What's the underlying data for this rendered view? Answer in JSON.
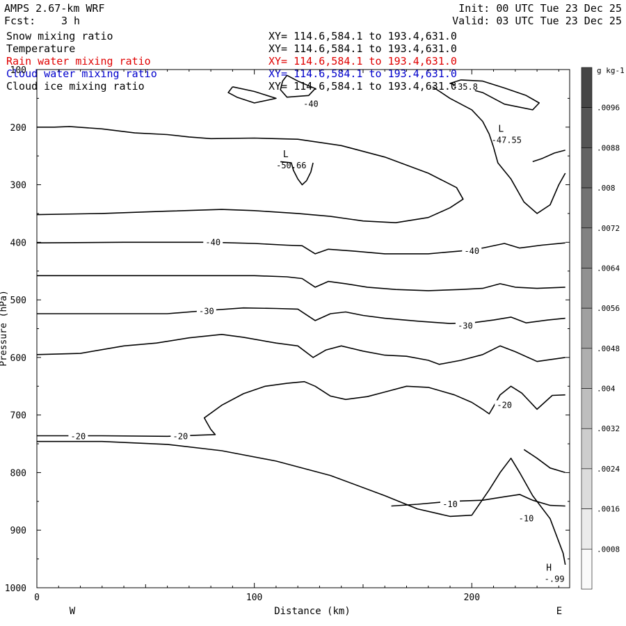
{
  "header": {
    "model": "AMPS 2.67-km WRF",
    "forecast_label": "Fcst:",
    "forecast_value": "3 h",
    "init": "Init: 00 UTC Tue 23 Dec 25",
    "valid": "Valid: 03 UTC Tue 23 Dec 25"
  },
  "fields": [
    {
      "name": "Snow mixing ratio",
      "xy": "XY= 114.6,584.1 to 193.4,631.0",
      "color": "#000000"
    },
    {
      "name": "Temperature",
      "xy": "XY= 114.6,584.1 to 193.4,631.0",
      "color": "#000000"
    },
    {
      "name": "Rain water mixing ratio",
      "xy": "XY= 114.6,584.1 to 193.4,631.0",
      "color": "#e00000"
    },
    {
      "name": "Cloud water mixing ratio",
      "xy": "XY= 114.6,584.1 to 193.4,631.0",
      "color": "#0000cc"
    },
    {
      "name": "Cloud ice mixing ratio",
      "xy": "XY= 114.6,584.1 to 193.4,631.0",
      "color": "#000000"
    }
  ],
  "chart_data": {
    "type": "contour",
    "xlabel": "Distance (km)",
    "ylabel": "Pressure (hPa)",
    "xlim": [
      0,
      245
    ],
    "ylim": [
      1000,
      100
    ],
    "x_ticks": [
      "0",
      "100",
      "200"
    ],
    "y_ticks": [
      "100",
      "200",
      "300",
      "400",
      "500",
      "600",
      "700",
      "800",
      "900",
      "1000"
    ],
    "x_ends": {
      "left": "W",
      "right": "E"
    },
    "colorbar": {
      "unit": "g kg-1",
      "ticks": [
        ".0096",
        ".0088",
        ".008",
        ".0072",
        ".0064",
        ".0056",
        ".0048",
        ".004",
        ".0032",
        ".0024",
        ".0016",
        ".0008"
      ]
    },
    "contour_labels": [
      {
        "text": "-40",
        "x": 126,
        "y": 160
      },
      {
        "text": "-35.8",
        "x": 197,
        "y": 130
      },
      {
        "text": "-40",
        "x": 81,
        "y": 400
      },
      {
        "text": "-40",
        "x": 200,
        "y": 415
      },
      {
        "text": "-30",
        "x": 78,
        "y": 520
      },
      {
        "text": "-30",
        "x": 197,
        "y": 545
      },
      {
        "text": "-20",
        "x": 19,
        "y": 737
      },
      {
        "text": "-20",
        "x": 66,
        "y": 737
      },
      {
        "text": "-20",
        "x": 215,
        "y": 683
      },
      {
        "text": "-10",
        "x": 190,
        "y": 855
      },
      {
        "text": "-10",
        "x": 225,
        "y": 880
      }
    ],
    "extrema": [
      {
        "type": "L",
        "value": "-50.66",
        "x": 117,
        "y": 262
      },
      {
        "type": "L",
        "value": "-47.55",
        "x": 216,
        "y": 218
      },
      {
        "type": "H",
        "value": "-.99",
        "x": 238,
        "y": 980
      }
    ],
    "isotherms": [
      {
        "level": -20,
        "points": [
          [
            0,
            746
          ],
          [
            30,
            746
          ],
          [
            60,
            751
          ],
          [
            85,
            762
          ],
          [
            110,
            780
          ],
          [
            135,
            805
          ],
          [
            160,
            840
          ],
          [
            175,
            863
          ],
          [
            190,
            876
          ],
          [
            200,
            874
          ],
          [
            208,
            830
          ],
          [
            213,
            800
          ],
          [
            218,
            775
          ],
          [
            222,
            800
          ],
          [
            228,
            840
          ],
          [
            236,
            880
          ],
          [
            242,
            940
          ],
          [
            243,
            960
          ]
        ]
      },
      {
        "level": -20,
        "points": [
          [
            0,
            736
          ],
          [
            30,
            736
          ],
          [
            60,
            737
          ],
          [
            75,
            735
          ],
          [
            82,
            734
          ],
          [
            80,
            725
          ],
          [
            78,
            712
          ],
          [
            77,
            705
          ],
          [
            85,
            683
          ],
          [
            95,
            663
          ],
          [
            105,
            650
          ],
          [
            115,
            645
          ],
          [
            123,
            642
          ],
          [
            128,
            650
          ],
          [
            135,
            667
          ],
          [
            142,
            673
          ],
          [
            152,
            668
          ],
          [
            160,
            660
          ],
          [
            170,
            650
          ],
          [
            180,
            652
          ],
          [
            192,
            665
          ],
          [
            200,
            678
          ],
          [
            205,
            690
          ],
          [
            208,
            698
          ],
          [
            210,
            685
          ],
          [
            213,
            665
          ],
          [
            218,
            650
          ],
          [
            223,
            662
          ],
          [
            230,
            690
          ],
          [
            237,
            666
          ],
          [
            243,
            665
          ]
        ]
      },
      {
        "level": -30,
        "points": [
          [
            0,
            595
          ],
          [
            20,
            593
          ],
          [
            40,
            580
          ],
          [
            55,
            575
          ],
          [
            70,
            566
          ],
          [
            85,
            560
          ],
          [
            95,
            565
          ],
          [
            110,
            575
          ],
          [
            120,
            580
          ],
          [
            127,
            600
          ],
          [
            133,
            587
          ],
          [
            140,
            580
          ],
          [
            150,
            589
          ],
          [
            160,
            596
          ],
          [
            170,
            598
          ],
          [
            180,
            605
          ],
          [
            185,
            612
          ],
          [
            195,
            605
          ],
          [
            205,
            595
          ],
          [
            213,
            580
          ],
          [
            220,
            590
          ],
          [
            230,
            607
          ],
          [
            243,
            600
          ]
        ]
      },
      {
        "level": -30,
        "points": [
          [
            0,
            524
          ],
          [
            30,
            524
          ],
          [
            60,
            524
          ],
          [
            80,
            518
          ],
          [
            95,
            514
          ],
          [
            110,
            515
          ],
          [
            120,
            516
          ],
          [
            128,
            536
          ],
          [
            135,
            524
          ],
          [
            142,
            521
          ],
          [
            150,
            527
          ],
          [
            160,
            532
          ],
          [
            175,
            537
          ],
          [
            190,
            541
          ],
          [
            200,
            540
          ],
          [
            210,
            535
          ],
          [
            218,
            530
          ],
          [
            225,
            540
          ],
          [
            235,
            535
          ],
          [
            243,
            532
          ]
        ]
      },
      {
        "level": -40,
        "points": [
          [
            0,
            458
          ],
          [
            40,
            458
          ],
          [
            80,
            458
          ],
          [
            100,
            458
          ],
          [
            115,
            460
          ],
          [
            122,
            463
          ],
          [
            128,
            478
          ],
          [
            134,
            468
          ],
          [
            142,
            472
          ],
          [
            152,
            478
          ],
          [
            165,
            482
          ],
          [
            180,
            484
          ],
          [
            195,
            482
          ],
          [
            205,
            480
          ],
          [
            213,
            472
          ],
          [
            220,
            478
          ],
          [
            230,
            480
          ],
          [
            243,
            478
          ]
        ]
      },
      {
        "level": -40,
        "points": [
          [
            0,
            401
          ],
          [
            40,
            400
          ],
          [
            80,
            400
          ],
          [
            100,
            402
          ],
          [
            115,
            405
          ],
          [
            122,
            406
          ],
          [
            128,
            420
          ],
          [
            134,
            412
          ],
          [
            145,
            415
          ],
          [
            160,
            420
          ],
          [
            180,
            420
          ],
          [
            195,
            415
          ],
          [
            205,
            410
          ],
          [
            215,
            402
          ],
          [
            222,
            410
          ],
          [
            232,
            405
          ],
          [
            243,
            401
          ]
        ]
      },
      {
        "level": -40,
        "points": [
          [
            0,
            352
          ],
          [
            30,
            350
          ],
          [
            60,
            346
          ],
          [
            85,
            343
          ],
          [
            100,
            345
          ],
          [
            120,
            350
          ],
          [
            135,
            355
          ],
          [
            150,
            363
          ],
          [
            165,
            366
          ],
          [
            180,
            357
          ],
          [
            190,
            340
          ],
          [
            196,
            325
          ],
          [
            193,
            305
          ],
          [
            180,
            280
          ],
          [
            160,
            252
          ],
          [
            140,
            232
          ],
          [
            120,
            221
          ],
          [
            100,
            219
          ],
          [
            80,
            220
          ],
          [
            70,
            217
          ],
          [
            60,
            213
          ],
          [
            45,
            210
          ],
          [
            30,
            203
          ],
          [
            15,
            199
          ],
          [
            8,
            200
          ],
          [
            0,
            200
          ]
        ]
      },
      {
        "level": -40,
        "points": [
          [
            112,
            260
          ],
          [
            117,
            262
          ],
          [
            118,
            275
          ],
          [
            120,
            290
          ],
          [
            122,
            300
          ],
          [
            124,
            293
          ],
          [
            126,
            278
          ],
          [
            127,
            262
          ]
        ]
      },
      {
        "level": -40,
        "points": [
          [
            115,
            110
          ],
          [
            120,
            120
          ],
          [
            128,
            133
          ],
          [
            125,
            145
          ],
          [
            115,
            148
          ],
          [
            112,
            135
          ],
          [
            113,
            120
          ],
          [
            115,
            110
          ]
        ]
      },
      {
        "level": -40,
        "points": [
          [
            90,
            130
          ],
          [
            100,
            138
          ],
          [
            110,
            150
          ],
          [
            100,
            158
          ],
          [
            92,
            148
          ],
          [
            88,
            140
          ],
          [
            90,
            130
          ]
        ]
      },
      {
        "level": -35.8,
        "points": [
          [
            195,
            118
          ],
          [
            205,
            120
          ],
          [
            215,
            132
          ],
          [
            225,
            145
          ],
          [
            231,
            158
          ],
          [
            228,
            170
          ],
          [
            215,
            160
          ],
          [
            205,
            140
          ],
          [
            195,
            130
          ],
          [
            190,
            124
          ],
          [
            195,
            118
          ]
        ]
      },
      {
        "level": -47.55,
        "points": [
          [
            182,
            130
          ],
          [
            190,
            150
          ],
          [
            200,
            170
          ],
          [
            205,
            190
          ],
          [
            208,
            212
          ],
          [
            210,
            235
          ],
          [
            212,
            262
          ],
          [
            218,
            290
          ],
          [
            224,
            330
          ],
          [
            230,
            350
          ],
          [
            236,
            335
          ],
          [
            240,
            300
          ],
          [
            243,
            280
          ]
        ]
      },
      {
        "level": -47.55,
        "points": [
          [
            228,
            260
          ],
          [
            232,
            255
          ],
          [
            238,
            245
          ],
          [
            243,
            240
          ]
        ]
      },
      {
        "level": -10,
        "points": [
          [
            163,
            858
          ],
          [
            175,
            855
          ],
          [
            190,
            850
          ],
          [
            205,
            848
          ],
          [
            215,
            842
          ],
          [
            222,
            838
          ],
          [
            228,
            848
          ],
          [
            236,
            857
          ],
          [
            243,
            858
          ]
        ]
      },
      {
        "level": -10,
        "points": [
          [
            224,
            760
          ],
          [
            230,
            775
          ],
          [
            236,
            792
          ],
          [
            243,
            800
          ]
        ]
      }
    ]
  }
}
